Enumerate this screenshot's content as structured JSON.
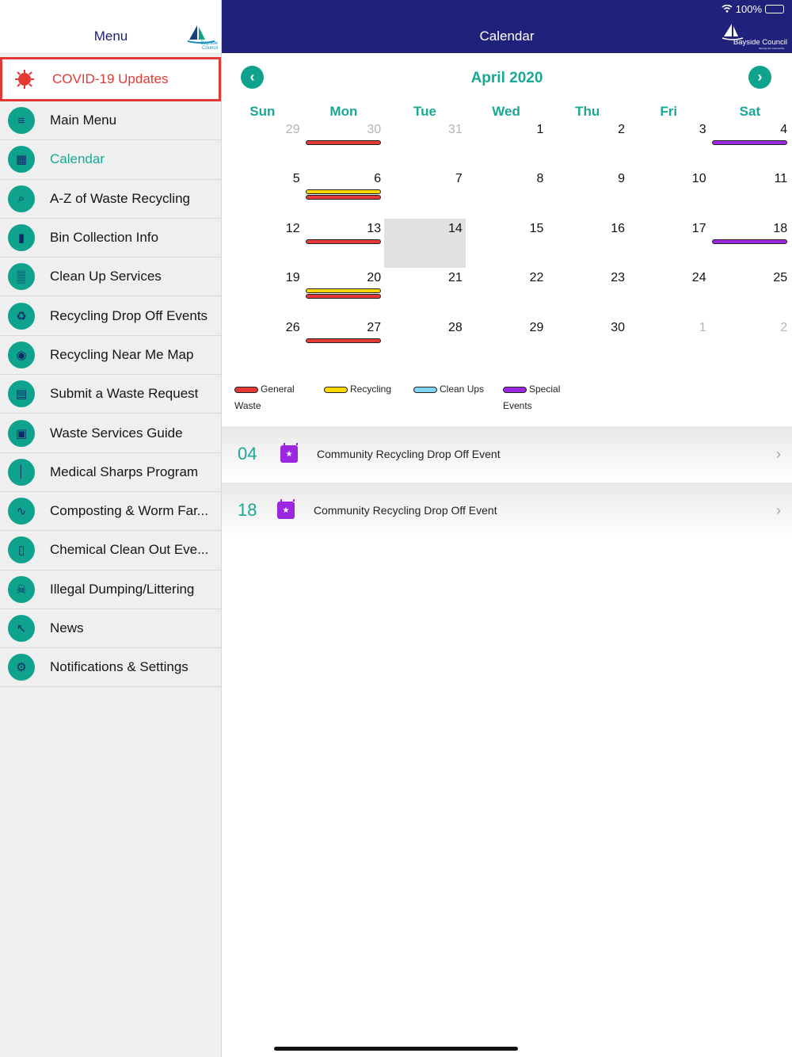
{
  "sidebar": {
    "title": "Menu",
    "logo_text": "Bayside Council",
    "covid": {
      "label": "COVID-19 Updates",
      "icon": "virus-icon",
      "color": "#e53935"
    },
    "items": [
      {
        "label": "Main Menu",
        "icon": "hamburger-icon"
      },
      {
        "label": "Calendar",
        "icon": "calendar-icon",
        "active": true
      },
      {
        "label": "A-Z of Waste Recycling",
        "icon": "search-icon"
      },
      {
        "label": "Bin Collection Info",
        "icon": "bin-icon"
      },
      {
        "label": "Clean Up Services",
        "icon": "clean-up-icon"
      },
      {
        "label": "Recycling Drop Off Events",
        "icon": "drop-off-icon"
      },
      {
        "label": "Recycling Near Me Map",
        "icon": "map-pin-icon"
      },
      {
        "label": "Submit a Waste Request",
        "icon": "form-icon"
      },
      {
        "label": "Waste Services Guide",
        "icon": "guide-icon"
      },
      {
        "label": "Medical Sharps Program",
        "icon": "sharps-icon"
      },
      {
        "label": "Composting & Worm Far...",
        "icon": "worm-icon"
      },
      {
        "label": "Chemical Clean Out Eve...",
        "icon": "chemical-bottle-icon"
      },
      {
        "label": "Illegal Dumping/Littering",
        "icon": "dumping-icon"
      },
      {
        "label": "News",
        "icon": "pushpin-icon"
      },
      {
        "label": "Notifications & Settings",
        "icon": "gear-icon"
      }
    ]
  },
  "topbar": {
    "title": "Calendar",
    "logo_text": "Bayside Council",
    "logo_sub": "Serving Our Community",
    "battery": "100%"
  },
  "calendar": {
    "month_title": "April 2020",
    "weekdays": [
      "Sun",
      "Mon",
      "Tue",
      "Wed",
      "Thu",
      "Fri",
      "Sat"
    ],
    "today": 14,
    "weeks": [
      [
        {
          "d": "29",
          "m": true
        },
        {
          "d": "30",
          "m": true,
          "bars": [
            "general"
          ]
        },
        {
          "d": "31",
          "m": true
        },
        {
          "d": "1"
        },
        {
          "d": "2"
        },
        {
          "d": "3"
        },
        {
          "d": "4",
          "bars": [
            "special"
          ]
        }
      ],
      [
        {
          "d": "5"
        },
        {
          "d": "6",
          "bars": [
            "recycling",
            "general"
          ]
        },
        {
          "d": "7"
        },
        {
          "d": "8"
        },
        {
          "d": "9"
        },
        {
          "d": "10"
        },
        {
          "d": "11"
        }
      ],
      [
        {
          "d": "12"
        },
        {
          "d": "13",
          "bars": [
            "general"
          ]
        },
        {
          "d": "14",
          "today": true
        },
        {
          "d": "15"
        },
        {
          "d": "16"
        },
        {
          "d": "17"
        },
        {
          "d": "18",
          "bars": [
            "special"
          ]
        }
      ],
      [
        {
          "d": "19"
        },
        {
          "d": "20",
          "bars": [
            "recycling",
            "general"
          ]
        },
        {
          "d": "21"
        },
        {
          "d": "22"
        },
        {
          "d": "23"
        },
        {
          "d": "24"
        },
        {
          "d": "25"
        }
      ],
      [
        {
          "d": "26"
        },
        {
          "d": "27",
          "bars": [
            "general"
          ]
        },
        {
          "d": "28"
        },
        {
          "d": "29"
        },
        {
          "d": "30"
        },
        {
          "d": "1",
          "m": true
        },
        {
          "d": "2",
          "m": true
        }
      ]
    ],
    "colors": {
      "general": "#e53935",
      "recycling": "#ffd600",
      "cleanup": "#81d4fa",
      "special": "#9c27e0",
      "accent": "#1aa896",
      "header": "#20217a"
    }
  },
  "legend": {
    "general_line1": "General",
    "general_line2": "Waste",
    "recycling": "Recycling",
    "cleanups": "Clean Ups",
    "special_line1": "Special",
    "special_line2": "Events"
  },
  "events": [
    {
      "day": "04",
      "title": "Community Recycling Drop Off Event",
      "icon": "calendar-star-icon"
    },
    {
      "day": "18",
      "title": "Community Recycling Drop Off Event",
      "icon": "calendar-star-icon"
    }
  ]
}
